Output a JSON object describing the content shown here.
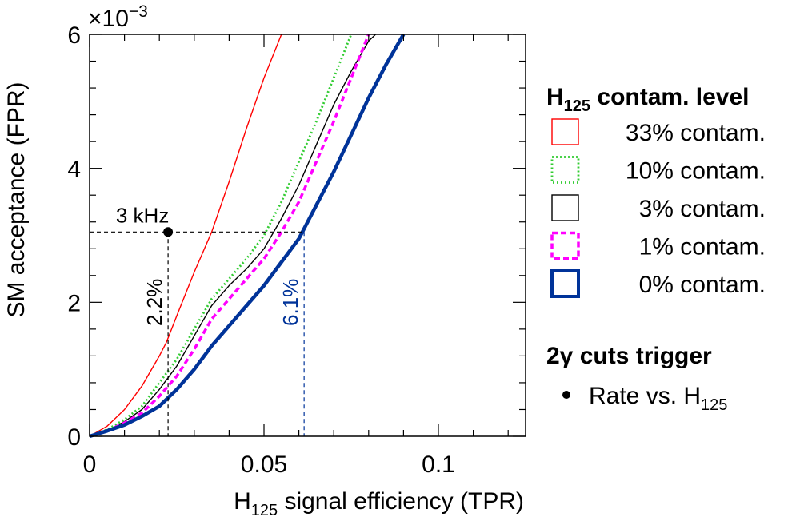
{
  "chart_data": {
    "type": "line",
    "title": "",
    "xlabel": {
      "main": "H",
      "sub": "125",
      "rest": " signal efficiency (TPR)"
    },
    "ylabel": "SM acceptance (FPR)",
    "xlim": [
      0,
      0.125
    ],
    "ylim": [
      0,
      6
    ],
    "y_scale_label": {
      "base": "×10",
      "exp": "−3"
    },
    "x_ticks": [
      {
        "value": 0,
        "label": "0"
      },
      {
        "value": 0.05,
        "label": "0.05"
      },
      {
        "value": 0.1,
        "label": "0.1"
      }
    ],
    "y_ticks": [
      {
        "value": 0,
        "label": "0"
      },
      {
        "value": 2,
        "label": "2"
      },
      {
        "value": 4,
        "label": "4"
      },
      {
        "value": 6,
        "label": "6"
      }
    ],
    "legend_placement": "right",
    "legend_title": {
      "main": "H",
      "sub": "125",
      "rest": " contam. level"
    },
    "series": [
      {
        "name": "33% contam.",
        "color": "#ff0000",
        "style": "solid-thin",
        "x": [
          0,
          0.005,
          0.01,
          0.015,
          0.02,
          0.022,
          0.025,
          0.03,
          0.035,
          0.04,
          0.045,
          0.05,
          0.055
        ],
        "y": [
          0,
          0.15,
          0.4,
          0.75,
          1.2,
          1.4,
          1.8,
          2.45,
          3.05,
          3.8,
          4.6,
          5.35,
          6.0
        ]
      },
      {
        "name": "10% contam.",
        "color": "#33cc33",
        "style": "dotted",
        "x": [
          0,
          0.005,
          0.01,
          0.015,
          0.02,
          0.025,
          0.03,
          0.035,
          0.04,
          0.045,
          0.05,
          0.055,
          0.06,
          0.065,
          0.07,
          0.075
        ],
        "y": [
          0,
          0.1,
          0.25,
          0.45,
          0.8,
          1.15,
          1.6,
          2.05,
          2.35,
          2.65,
          3.0,
          3.5,
          4.1,
          4.7,
          5.35,
          6.0
        ]
      },
      {
        "name": "3% contam.",
        "color": "#000000",
        "style": "solid-thin",
        "x": [
          0,
          0.005,
          0.01,
          0.015,
          0.02,
          0.025,
          0.03,
          0.035,
          0.04,
          0.045,
          0.05,
          0.055,
          0.06,
          0.065,
          0.07,
          0.075,
          0.08,
          0.082
        ],
        "y": [
          0,
          0.08,
          0.22,
          0.4,
          0.7,
          1.05,
          1.5,
          1.95,
          2.25,
          2.5,
          2.8,
          3.25,
          3.75,
          4.35,
          4.95,
          5.45,
          5.9,
          6.0
        ]
      },
      {
        "name": "1% contam.",
        "color": "#ff00ff",
        "style": "dashed",
        "x": [
          0,
          0.005,
          0.01,
          0.015,
          0.02,
          0.025,
          0.03,
          0.035,
          0.04,
          0.045,
          0.05,
          0.055,
          0.06,
          0.065,
          0.07,
          0.075,
          0.08
        ],
        "y": [
          0,
          0.08,
          0.2,
          0.35,
          0.6,
          0.9,
          1.3,
          1.75,
          2.05,
          2.35,
          2.65,
          3.05,
          3.5,
          4.1,
          4.7,
          5.35,
          6.0
        ]
      },
      {
        "name": "0% contam.",
        "color": "#003399",
        "style": "solid-thick",
        "x": [
          0,
          0.005,
          0.01,
          0.015,
          0.02,
          0.025,
          0.03,
          0.035,
          0.04,
          0.045,
          0.05,
          0.055,
          0.06,
          0.061,
          0.065,
          0.07,
          0.075,
          0.08,
          0.085,
          0.09
        ],
        "y": [
          0,
          0.08,
          0.17,
          0.3,
          0.45,
          0.7,
          1.0,
          1.35,
          1.65,
          1.95,
          2.25,
          2.6,
          2.95,
          3.05,
          3.45,
          3.95,
          4.5,
          5.05,
          5.55,
          6.0
        ]
      }
    ],
    "trigger_section": {
      "title": "2γ cuts trigger",
      "entry": {
        "main": "Rate vs. H",
        "sub": "125"
      }
    },
    "annotations": {
      "point": {
        "x": 0.0225,
        "y": 3.05,
        "label": "3 kHz"
      },
      "markers": [
        {
          "x": 0.0225,
          "label": "2.2%",
          "color": "#000000"
        },
        {
          "x": 0.0615,
          "label": "6.1%",
          "color": "#003399"
        }
      ]
    }
  }
}
